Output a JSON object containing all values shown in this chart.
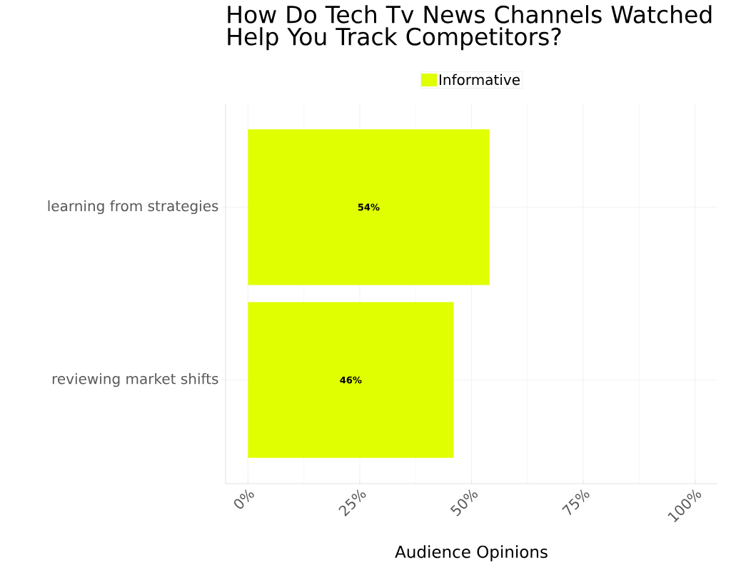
{
  "chart_data": {
    "type": "bar",
    "orientation": "horizontal",
    "title": "How Do Tech Tv News Channels Watched Help You Track Competitors?",
    "xlabel": "Audience Opinions",
    "categories": [
      "learning from strategies",
      "reviewing market shifts"
    ],
    "series": [
      {
        "name": "Informative",
        "color": "#e0ff00",
        "values": [
          54,
          46
        ],
        "value_labels": [
          "54%",
          "46%"
        ]
      }
    ],
    "xlim": [
      -5,
      105
    ],
    "xticks": [
      {
        "value": 0,
        "label": "0%"
      },
      {
        "value": 25,
        "label": "25%"
      },
      {
        "value": 50,
        "label": "50%"
      },
      {
        "value": 75,
        "label": "75%"
      },
      {
        "value": 100,
        "label": "100%"
      }
    ],
    "grid": true,
    "legend": "top"
  }
}
